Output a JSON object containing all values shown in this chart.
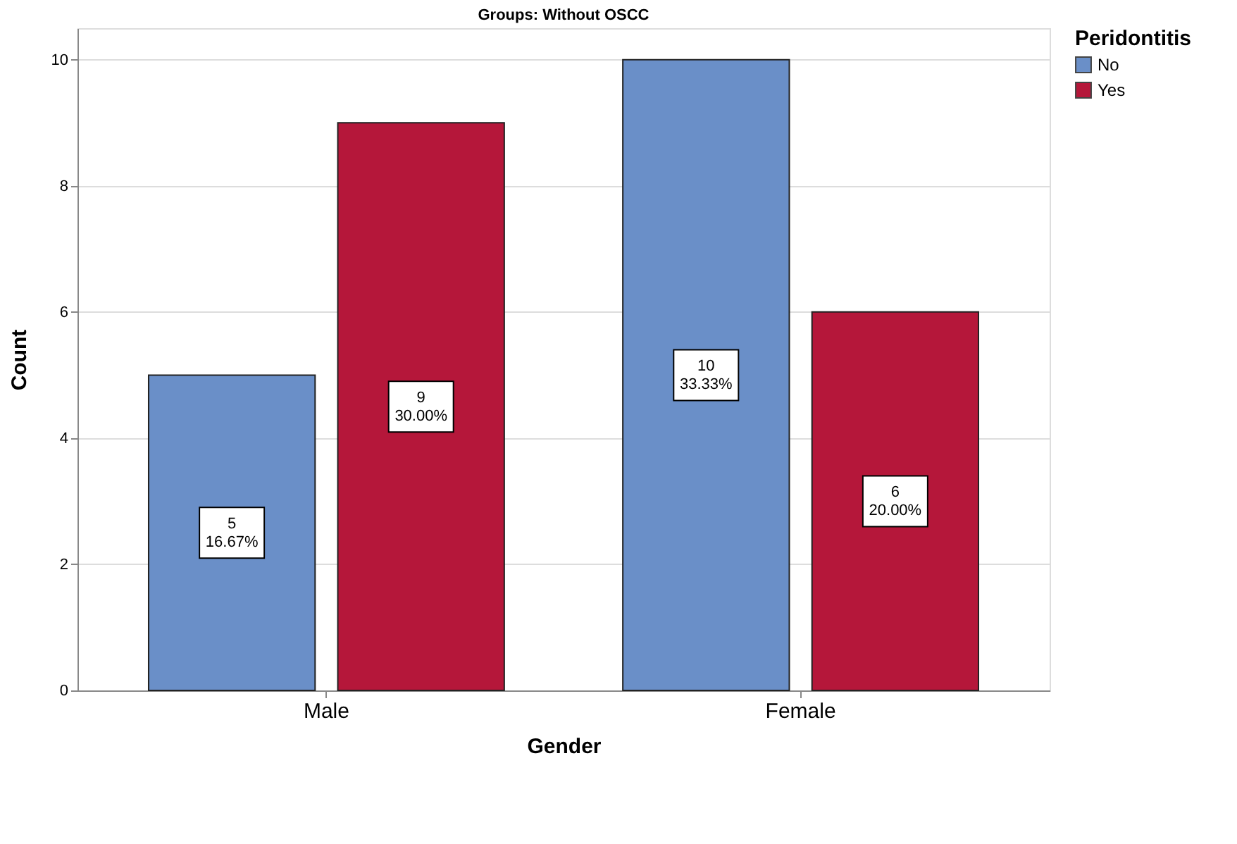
{
  "chart_data": {
    "type": "bar",
    "title": "Groups: Without OSCC",
    "xlabel": "Gender",
    "ylabel": "Count",
    "legend_title": "Peridontitis",
    "categories": [
      "Male",
      "Female"
    ],
    "series": [
      {
        "name": "No",
        "color": "#6a8fc8",
        "values": [
          5,
          10
        ],
        "value_labels": [
          "5\n16.67%",
          "10\n33.33%"
        ]
      },
      {
        "name": "Yes",
        "color": "#b5173a",
        "values": [
          9,
          6
        ],
        "value_labels": [
          "9\n30.00%",
          "6\n20.00%"
        ]
      }
    ],
    "ylim": [
      0,
      10.5
    ],
    "yticks": [
      0,
      2,
      4,
      6,
      8,
      10
    ],
    "grid": "y",
    "legend": "top right"
  }
}
